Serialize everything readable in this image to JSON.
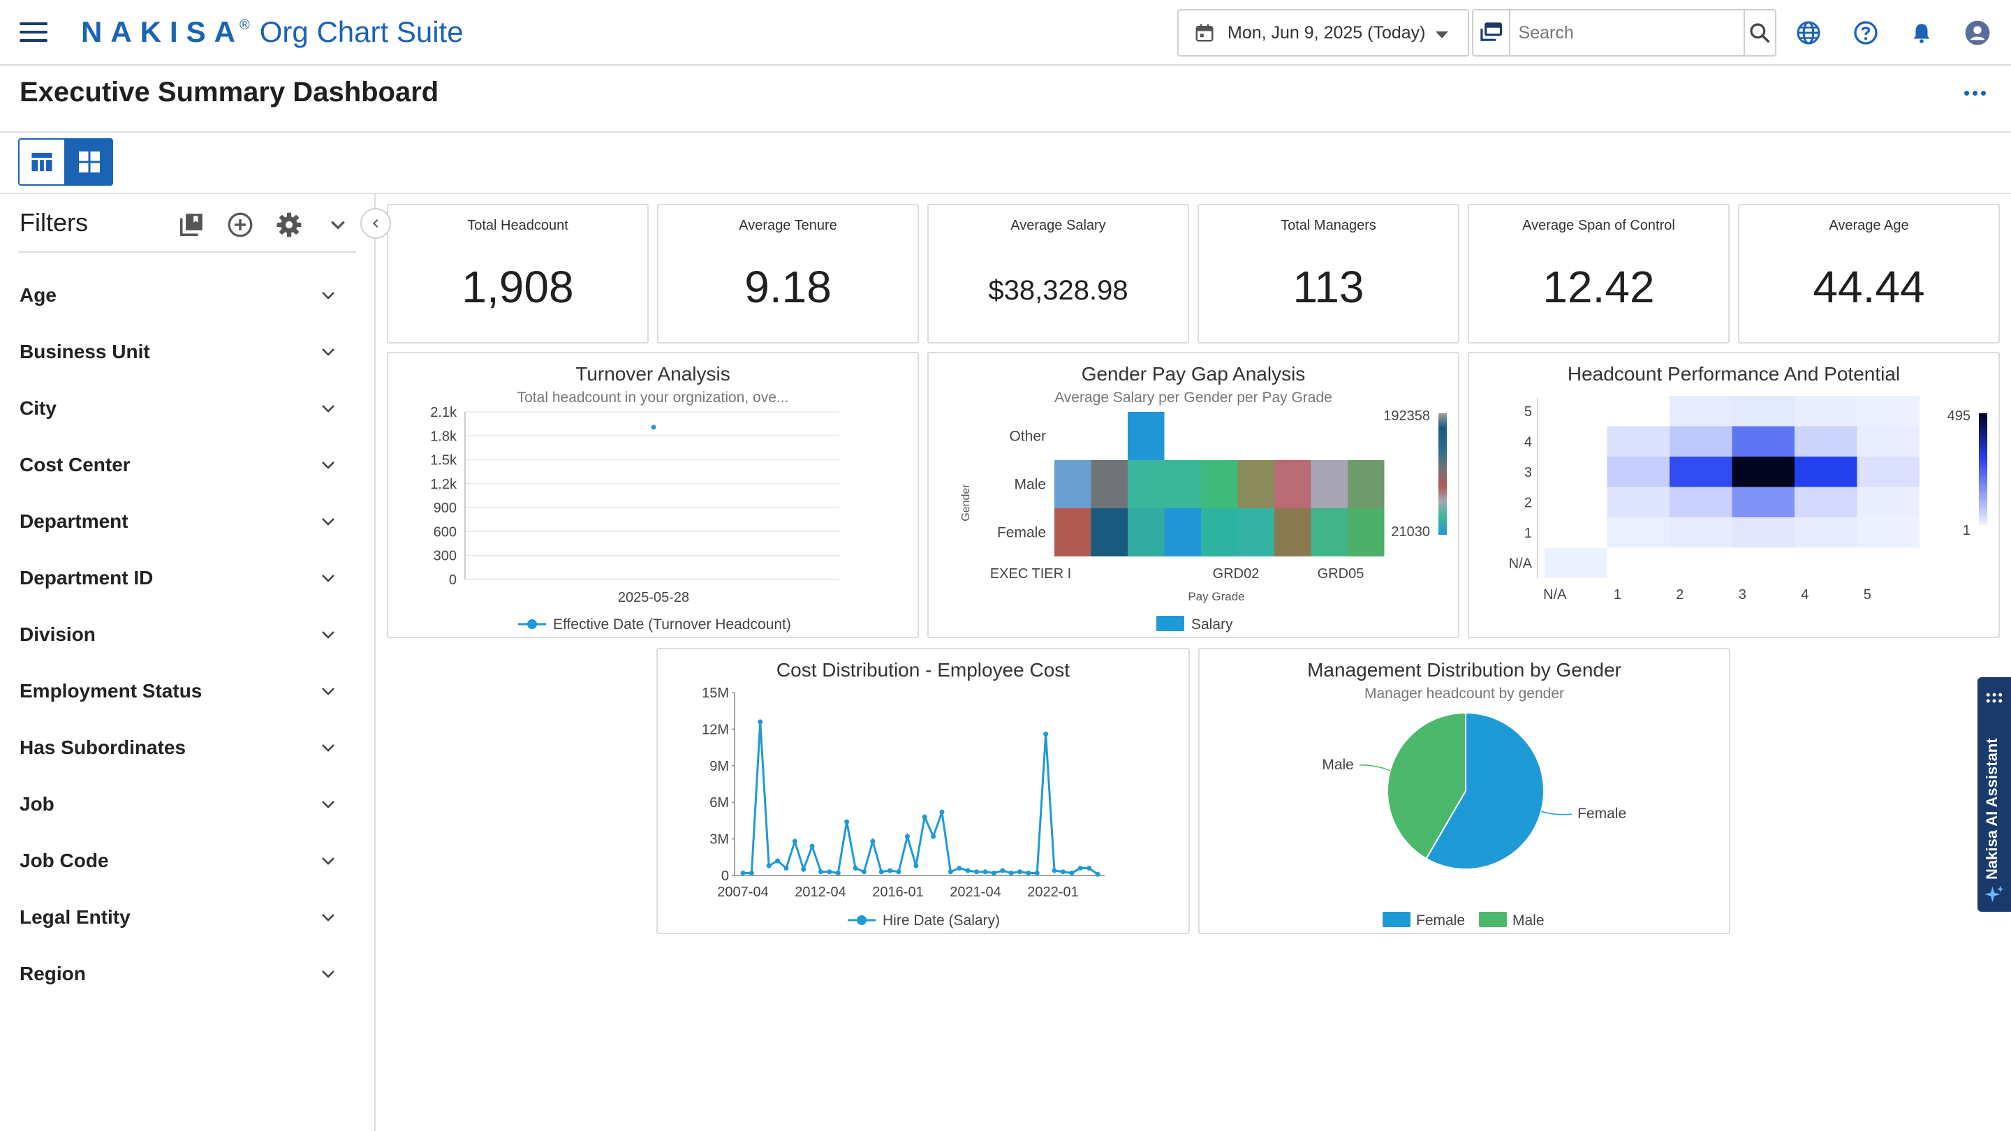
{
  "app": {
    "logo": "NAKISA",
    "registered": "®",
    "suite": "Org Chart Suite",
    "date": "Mon, Jun 9, 2025 (Today)",
    "search_placeholder": "Search",
    "page_title": "Executive Summary Dashboard"
  },
  "filters": {
    "title": "Filters",
    "items": [
      "Age",
      "Business Unit",
      "City",
      "Cost Center",
      "Department",
      "Department ID",
      "Division",
      "Employment Status",
      "Has Subordinates",
      "Job",
      "Job Code",
      "Legal Entity",
      "Region"
    ]
  },
  "kpis": [
    {
      "title": "Total Headcount",
      "value": "1,908"
    },
    {
      "title": "Average Tenure",
      "value": "9.18"
    },
    {
      "title": "Average Salary",
      "value": "$38,328.98"
    },
    {
      "title": "Total Managers",
      "value": "113"
    },
    {
      "title": "Average Span of Control",
      "value": "12.42"
    },
    {
      "title": "Average Age",
      "value": "44.44"
    }
  ],
  "colors": {
    "brand": "#1b63b5",
    "series": "#1e9ad6",
    "male": "#4cb86b",
    "female": "#1e9ad6"
  },
  "ai_assistant": "Nakisa AI Assistant",
  "chart_data": [
    {
      "id": "turnover",
      "type": "scatter",
      "title": "Turnover Analysis",
      "subtitle": "Total headcount in your orgnization, ove...",
      "yticks": [
        "0",
        "300",
        "600",
        "900",
        "1.2k",
        "1.5k",
        "1.8k",
        "2.1k"
      ],
      "ylim": [
        0,
        2100
      ],
      "xticks": [
        "2025-05-28"
      ],
      "points": [
        {
          "x": "2025-05-28",
          "y": 1908
        }
      ],
      "legend": "Effective Date (Turnover Headcount)"
    },
    {
      "id": "paygap",
      "type": "heatmap",
      "title": "Gender Pay Gap Analysis",
      "subtitle": "Average Salary per Gender per Pay Grade",
      "ylabel": "Gender",
      "xlabel": "Pay Grade",
      "rows": [
        "Other",
        "Male",
        "Female"
      ],
      "xticks": [
        "EXEC TIER I",
        "GRD02",
        "GRD05"
      ],
      "scale_max": "192358",
      "scale_min": "21030",
      "cells": [
        [
          null,
          null,
          "#2196d6",
          null,
          null,
          null,
          null,
          null,
          null
        ],
        [
          "#6aa0cf",
          "#707478",
          "#39b59a",
          "#3bb797",
          "#40ba7a",
          "#8a8a5a",
          "#b86a75",
          "#a8a5b5",
          "#6f9a6c"
        ],
        [
          "#b05a52",
          "#1a5a7f",
          "#31aaa0",
          "#2196d6",
          "#2cb4a0",
          "#34b3a2",
          "#8a7a52",
          "#43b48a",
          "#4caf6a"
        ]
      ],
      "legend": "Salary"
    },
    {
      "id": "performance",
      "type": "heatmap",
      "title": "Headcount Performance And Potential",
      "yticks": [
        "N/A",
        "1",
        "2",
        "3",
        "4",
        "5"
      ],
      "xticks": [
        "N/A",
        "1",
        "2",
        "3",
        "4",
        "5"
      ],
      "scale_max": "495",
      "scale_min": "1",
      "grid": [
        [
          1,
          0,
          0,
          0,
          0,
          0
        ],
        [
          0,
          4,
          10,
          18,
          10,
          2
        ],
        [
          0,
          22,
          55,
          160,
          40,
          6
        ],
        [
          0,
          60,
          280,
          495,
          300,
          30
        ],
        [
          0,
          30,
          70,
          210,
          50,
          8
        ],
        [
          0,
          0,
          12,
          16,
          6,
          2
        ]
      ]
    },
    {
      "id": "cost",
      "type": "line",
      "title": "Cost Distribution - Employee Cost",
      "yticks": [
        "0",
        "3M",
        "6M",
        "9M",
        "12M",
        "15M"
      ],
      "ylim": [
        0,
        15000000
      ],
      "xticks": [
        "2007-04",
        "2012-04",
        "2016-01",
        "2021-04",
        "2022-01"
      ],
      "values": [
        0.2,
        0.2,
        12.6,
        0.8,
        1.2,
        0.6,
        2.8,
        0.5,
        2.4,
        0.3,
        0.3,
        0.2,
        4.4,
        0.6,
        0.3,
        2.8,
        0.3,
        0.4,
        0.3,
        3.2,
        0.8,
        4.8,
        3.2,
        5.2,
        0.3,
        0.6,
        0.4,
        0.3,
        0.3,
        0.2,
        0.4,
        0.2,
        0.3,
        0.2,
        0.2,
        11.6,
        0.4,
        0.3,
        0.2,
        0.6,
        0.6,
        0.1
      ],
      "legend": "Hire Date (Salary)"
    },
    {
      "id": "mgmt",
      "type": "pie",
      "title": "Management Distribution by Gender",
      "subtitle": "Manager headcount by gender",
      "slices": [
        {
          "label": "Female",
          "value": 66
        },
        {
          "label": "Male",
          "value": 47
        }
      ],
      "legend": [
        "Female",
        "Male"
      ]
    }
  ]
}
